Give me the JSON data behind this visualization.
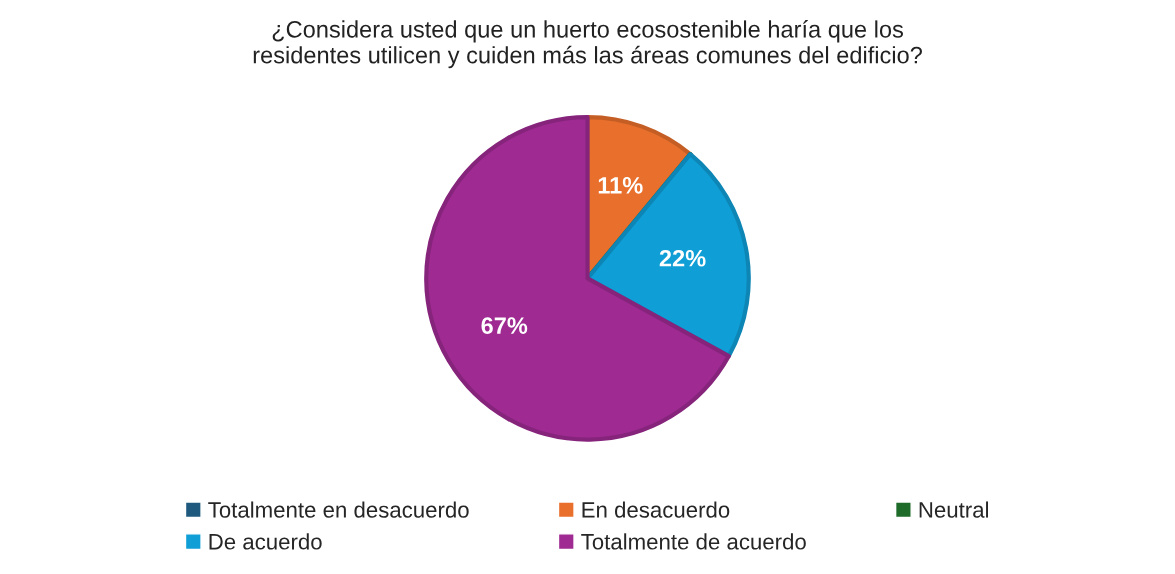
{
  "chart_data": {
    "type": "pie",
    "title": "¿Considera usted que un huerto ecosostenible haría que los\nresidentes utilicen y cuiden más las áreas comunes del edificio?",
    "categories": [
      "Totalmente en desacuerdo",
      "En desacuerdo",
      "Neutral",
      "De acuerdo",
      "Totalmente de acuerdo"
    ],
    "values": [
      0,
      11,
      0,
      22,
      67
    ],
    "colors": [
      "#1f5a7e",
      "#e86f2c",
      "#1e6b2a",
      "#0f9ed5",
      "#9e2a92"
    ],
    "value_labels": [
      null,
      "11%",
      null,
      "22%",
      "67%"
    ],
    "legend": "bottom"
  }
}
